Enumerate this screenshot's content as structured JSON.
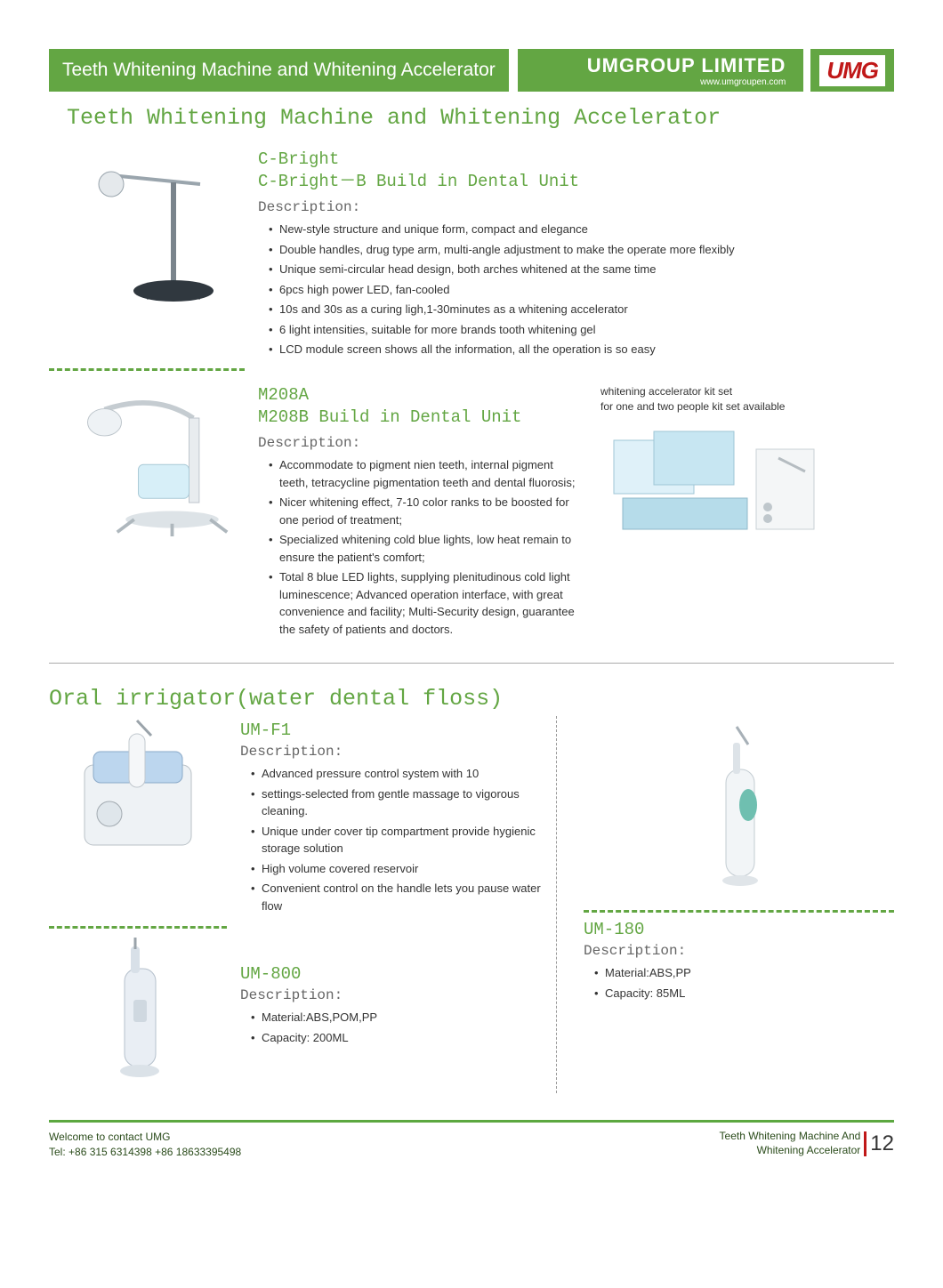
{
  "colors": {
    "green": "#63a643",
    "darkgreen": "#2a4b1a",
    "red": "#c01818",
    "footer_border": "#5ca840",
    "text": "#333333",
    "gray": "#666666"
  },
  "header": {
    "title": "Teeth Whitening Machine and Whitening Accelerator",
    "company": "UMGROUP LIMITED",
    "url": "www.umgroupen.com",
    "logo": "UMG"
  },
  "section1": {
    "title": "Teeth Whitening Machine and Whitening Accelerator",
    "p1": {
      "title1": "C-Bright",
      "title2": "C-Bright－B Build in Dental Unit",
      "desc_label": "Description:",
      "bullets": [
        "New-style structure and unique form, compact and elegance",
        "Double handles, drug type arm, multi-angle adjustment to make the operate more flexibly",
        "Unique semi-circular head design, both arches whitened at the same time",
        "6pcs high power LED, fan-cooled",
        "10s and 30s as a curing ligh,1-30minutes as a whitening accelerator",
        "6 light intensities, suitable for more brands tooth whitening gel",
        "LCD module screen shows all the information, all the operation is so easy"
      ]
    },
    "p2": {
      "title1": "M208A",
      "title2": "M208B Build in Dental Unit",
      "desc_label": "Description:",
      "bullets": [
        "Accommodate to pigment nien teeth, internal pigment teeth, tetracycline pigmentation teeth and dental fluorosis;",
        "Nicer whitening effect, 7-10 color  ranks to be boosted for one period of treatment;",
        "Specialized whitening cold blue lights, low heat remain to ensure the patient's comfort;",
        "Total 8 blue LED lights, supplying plenitudinous cold light luminescence; Advanced operation interface, with great convenience and facility; Multi-Security design, guarantee the safety of patients and doctors."
      ],
      "side_text": "whitening accelerator kit set\nfor one and two people kit set available"
    }
  },
  "section2": {
    "title": "Oral irrigator(water dental floss)",
    "p1": {
      "title": "UM-F1",
      "desc_label": "Description:",
      "bullets": [
        "Advanced pressure control system with 10",
        "settings-selected from gentle massage to vigorous cleaning.",
        "Unique under cover tip compartment provide hygienic storage solution",
        "High volume covered reservoir",
        "Convenient control on the handle lets you pause water flow"
      ]
    },
    "p2": {
      "title": "UM-800",
      "desc_label": "Description:",
      "bullets": [
        "Material:ABS,POM,PP",
        "Capacity: 200ML"
      ]
    },
    "p3": {
      "title": "UM-180",
      "desc_label": "Description:",
      "bullets": [
        "Material:ABS,PP",
        "Capacity: 85ML"
      ]
    }
  },
  "footer": {
    "welcome": "Welcome to contact UMG",
    "tel": "Tel: +86 315 6314398 +86 18633395498",
    "category": "Teeth Whitening Machine And\nWhitening Accelerator",
    "page": "12"
  }
}
